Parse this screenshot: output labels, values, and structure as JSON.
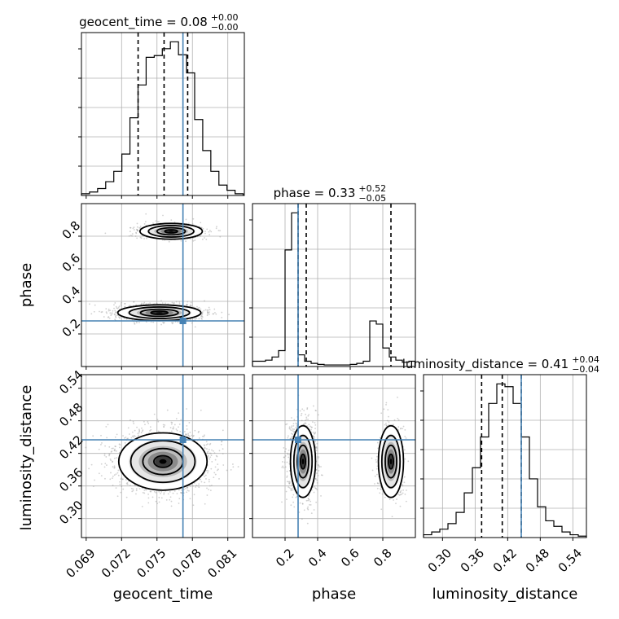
{
  "chart_data": {
    "type": "corner",
    "parameters": [
      "geocent_time",
      "phase",
      "luminosity_distance"
    ],
    "truths": {
      "geocent_time": 0.0772,
      "phase": 0.28,
      "luminosity_distance": 0.445
    },
    "axis_ranges": {
      "geocent_time": [
        0.0686,
        0.0824
      ],
      "phase": [
        0.0,
        1.0
      ],
      "luminosity_distance": [
        0.265,
        0.565
      ]
    },
    "ticks": {
      "geocent_time": [
        0.069,
        0.072,
        0.075,
        0.078,
        0.081
      ],
      "phase": [
        0.2,
        0.4,
        0.6,
        0.8
      ],
      "luminosity_distance": [
        0.3,
        0.36,
        0.42,
        0.48,
        0.54
      ]
    },
    "tick_labels": {
      "geocent_time": [
        "0.069",
        "0.072",
        "0.075",
        "0.078",
        "0.081"
      ],
      "phase": [
        "0.2",
        "0.4",
        "0.6",
        "0.8"
      ],
      "luminosity_distance": [
        "0.30",
        "0.36",
        "0.42",
        "0.48",
        "0.54"
      ]
    },
    "titles": {
      "geocent_time": {
        "text": "geocent_time = 0.08",
        "plus": "+0.00",
        "minus": "−0.00"
      },
      "phase": {
        "text": "phase = 0.33",
        "plus": "+0.52",
        "minus": "−0.05"
      },
      "luminosity_distance": {
        "text": "luminosity_distance = 0.41",
        "plus": "+0.04",
        "minus": "−0.04"
      }
    },
    "quantiles": {
      "geocent_time": [
        0.0734,
        0.0756,
        0.0776
      ],
      "phase": [
        0.28,
        0.33,
        0.85
      ],
      "luminosity_distance": [
        0.372,
        0.41,
        0.445
      ]
    },
    "histograms": {
      "geocent_time": {
        "bin_edges_start": 0.0686,
        "bin_width": 0.000685,
        "counts": [
          2,
          4,
          8,
          16,
          28,
          48,
          90,
          128,
          160,
          162,
          170,
          178,
          163,
          142,
          88,
          52,
          28,
          12,
          6,
          2
        ]
      },
      "phase": {
        "bin_edges_start": 0.0,
        "bin_width": 0.04,
        "counts": [
          10,
          10,
          12,
          18,
          30,
          220,
          290,
          22,
          10,
          6,
          4,
          3,
          3,
          3,
          3,
          4,
          6,
          10,
          86,
          80,
          35,
          18,
          12,
          8,
          10
        ]
      },
      "luminosity_distance": {
        "bin_edges_start": 0.265,
        "bin_width": 0.015,
        "counts": [
          2,
          4,
          6,
          10,
          18,
          32,
          50,
          72,
          96,
          110,
          108,
          96,
          72,
          42,
          22,
          12,
          8,
          4,
          2,
          1
        ]
      }
    },
    "grid": true,
    "truth_color": "#4682b4"
  }
}
